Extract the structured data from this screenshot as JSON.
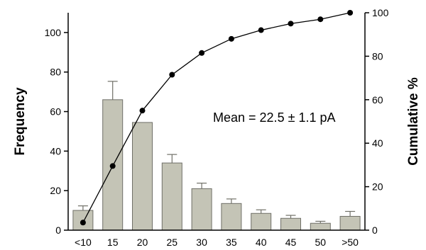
{
  "chart_data": {
    "type": "bar",
    "categories": [
      "<10",
      "15",
      "20",
      "25",
      "30",
      "35",
      "40",
      "45",
      "50",
      ">50"
    ],
    "series": [
      {
        "values": [
          10,
          66,
          54.5,
          34,
          21,
          13.5,
          8.5,
          6,
          3.5,
          7
        ],
        "error_upper": [
          12.3,
          75.3,
          54.5,
          38.3,
          23.8,
          15.8,
          10.3,
          7.5,
          4.5,
          9.5
        ],
        "axis": "left"
      },
      {
        "values": [
          3.5,
          29.5,
          55,
          71.5,
          81.5,
          88,
          92,
          95,
          97,
          100
        ],
        "axis": "right"
      }
    ],
    "ylabel": "Frequency",
    "y2label": "Cumulative %",
    "ylim": [
      0,
      110
    ],
    "yticks": [
      0,
      20,
      40,
      60,
      80,
      100
    ],
    "y2lim": [
      0,
      100
    ],
    "y2ticks": [
      0,
      20,
      40,
      60,
      80,
      100
    ],
    "annotation": "Mean = 22.5 ± 1.1 pA",
    "grid": false,
    "colors": {
      "bar_fill": "#c4c4b6",
      "bar_stroke": "#707068",
      "line": "#000000",
      "marker": "#000000"
    }
  }
}
